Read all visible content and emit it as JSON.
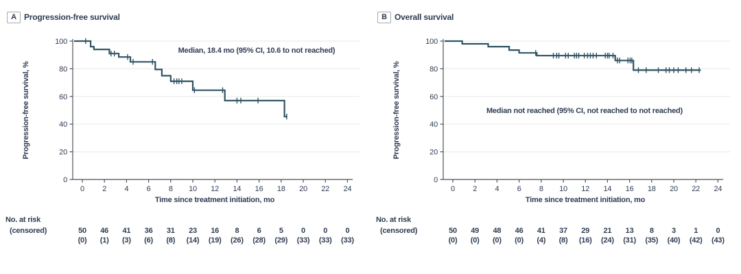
{
  "colors": {
    "curve": "#2f5363",
    "grid": "#ececec",
    "axis": "#4d5257",
    "text": "#2e3c52",
    "background": "#ffffff"
  },
  "risk_table_header": {
    "line1": "No. at risk",
    "line2": "(censored)"
  },
  "chart_data": [
    {
      "type": "line",
      "km_style": "kaplan-meier-step",
      "panel_letter": "A",
      "panel_title": "Progression-free survival",
      "annotation": "Median, 18.4 mo (95% CI, 10.6 to not reached)",
      "xlabel": "Time since treatment initiation, mo",
      "ylabel": "Progression-free survival, %",
      "xlim": [
        0,
        24
      ],
      "ylim": [
        0,
        100
      ],
      "xticks": [
        0,
        2,
        4,
        6,
        8,
        10,
        12,
        14,
        16,
        18,
        20,
        22,
        24
      ],
      "yticks": [
        0,
        20,
        40,
        60,
        80,
        100
      ],
      "grid": true,
      "steps_pct": [
        [
          0,
          100
        ],
        [
          0.75,
          96
        ],
        [
          1.05,
          94
        ],
        [
          2.45,
          91
        ],
        [
          3.3,
          88.5
        ],
        [
          4.35,
          85
        ],
        [
          6.6,
          79.5
        ],
        [
          7.2,
          75
        ],
        [
          8.0,
          71
        ],
        [
          10.0,
          64.5
        ],
        [
          12.9,
          57
        ],
        [
          18.3,
          45.5
        ]
      ],
      "curve_end_month": 18.55,
      "censor_marks": [
        [
          0.3,
          100
        ],
        [
          2.6,
          91
        ],
        [
          2.9,
          91
        ],
        [
          4.1,
          88.5
        ],
        [
          4.6,
          85
        ],
        [
          6.35,
          85
        ],
        [
          8.3,
          71
        ],
        [
          8.55,
          71
        ],
        [
          8.75,
          71
        ],
        [
          9.0,
          71
        ],
        [
          10.15,
          64.5
        ],
        [
          12.7,
          64.5
        ],
        [
          14.0,
          57
        ],
        [
          14.35,
          57
        ],
        [
          15.9,
          57
        ],
        [
          18.5,
          45.5
        ]
      ],
      "risk_months": [
        0,
        2,
        4,
        6,
        8,
        10,
        12,
        14,
        16,
        18,
        20,
        22,
        24
      ],
      "at_risk": [
        "50",
        "46",
        "41",
        "36",
        "31",
        "23",
        "16",
        "8",
        "6",
        "5",
        "0",
        "0",
        "0"
      ],
      "censored": [
        "(0)",
        "(1)",
        "(3)",
        "(6)",
        "(8)",
        "(14)",
        "(19)",
        "(26)",
        "(28)",
        "(29)",
        "(33)",
        "(33)",
        "(33)"
      ]
    },
    {
      "type": "line",
      "km_style": "kaplan-meier-step",
      "panel_letter": "B",
      "panel_title": "Overall survival",
      "annotation": "Median not reached (95% CI, not reached to not reached)",
      "xlabel": "Time since treatment initiation, mo",
      "ylabel": "Progression-free survival, %",
      "xlim": [
        0,
        24
      ],
      "ylim": [
        0,
        100
      ],
      "xticks": [
        0,
        2,
        4,
        6,
        8,
        10,
        12,
        14,
        16,
        18,
        20,
        22,
        24
      ],
      "yticks": [
        0,
        20,
        40,
        60,
        80,
        100
      ],
      "grid": true,
      "steps_pct": [
        [
          0,
          100
        ],
        [
          0.85,
          98
        ],
        [
          3.2,
          96
        ],
        [
          5.1,
          93.5
        ],
        [
          6.0,
          91.5
        ],
        [
          7.6,
          89.5
        ],
        [
          14.7,
          86
        ],
        [
          16.35,
          79
        ]
      ],
      "curve_end_month": 22.45,
      "censor_marks": [
        [
          7.5,
          91.5
        ],
        [
          9.1,
          89.5
        ],
        [
          9.4,
          89.5
        ],
        [
          9.6,
          89.5
        ],
        [
          10.2,
          89.5
        ],
        [
          10.45,
          89.5
        ],
        [
          11.0,
          89.5
        ],
        [
          11.2,
          89.5
        ],
        [
          11.4,
          89.5
        ],
        [
          11.9,
          89.5
        ],
        [
          12.2,
          89.5
        ],
        [
          12.45,
          89.5
        ],
        [
          12.7,
          89.5
        ],
        [
          13.0,
          89.5
        ],
        [
          13.8,
          89.5
        ],
        [
          14.0,
          89.5
        ],
        [
          14.15,
          89.5
        ],
        [
          14.5,
          89.5
        ],
        [
          14.9,
          86
        ],
        [
          15.1,
          86
        ],
        [
          15.85,
          86
        ],
        [
          16.05,
          86
        ],
        [
          16.2,
          86
        ],
        [
          16.8,
          79
        ],
        [
          17.5,
          79
        ],
        [
          18.6,
          79
        ],
        [
          19.3,
          79
        ],
        [
          19.6,
          79
        ],
        [
          20.0,
          79
        ],
        [
          20.4,
          79
        ],
        [
          21.1,
          79
        ],
        [
          21.6,
          79
        ],
        [
          22.3,
          79
        ]
      ],
      "risk_months": [
        0,
        2,
        4,
        6,
        8,
        10,
        12,
        14,
        16,
        18,
        20,
        22,
        24
      ],
      "at_risk": [
        "50",
        "49",
        "48",
        "46",
        "41",
        "37",
        "29",
        "21",
        "13",
        "8",
        "3",
        "1",
        "0"
      ],
      "censored": [
        "(0)",
        "(0)",
        "(0)",
        "(0)",
        "(4)",
        "(8)",
        "(16)",
        "(24)",
        "(31)",
        "(35)",
        "(40)",
        "(42)",
        "(43)"
      ]
    }
  ]
}
